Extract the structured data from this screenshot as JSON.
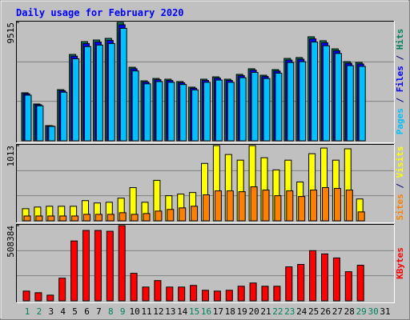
{
  "chart_data": [
    {
      "type": "bar",
      "title": "Daily usage for February 2020",
      "categories": [
        "1",
        "2",
        "3",
        "4",
        "5",
        "6",
        "7",
        "8",
        "9",
        "10",
        "11",
        "12",
        "13",
        "14",
        "15",
        "16",
        "17",
        "18",
        "19",
        "20",
        "21",
        "22",
        "23",
        "24",
        "25",
        "26",
        "27",
        "28",
        "29",
        "30",
        "31"
      ],
      "label_colors": [
        "#00805c",
        "#00805c",
        "#000000",
        "#000000",
        "#000000",
        "#000000",
        "#000000",
        "#00805c",
        "#00805c",
        "#000000",
        "#000000",
        "#000000",
        "#000000",
        "#000000",
        "#00805c",
        "#00805c",
        "#000000",
        "#000000",
        "#000000",
        "#000000",
        "#000000",
        "#00805c",
        "#00805c",
        "#000000",
        "#000000",
        "#000000",
        "#000000",
        "#000000",
        "#00805c",
        "#00805c",
        "#000000"
      ],
      "ylim": [
        0,
        9515
      ],
      "yticks": [
        9515
      ],
      "legend_separator": " / ",
      "series": [
        {
          "name": "Pages",
          "color": "#00c0ff",
          "values": [
            3667,
            2812,
            1159,
            3905,
            6593,
            7572,
            7695,
            7819,
            9039,
            5615,
            4579,
            4760,
            4703,
            4522,
            4095,
            4703,
            4883,
            4703,
            5073,
            5501,
            5007,
            5434,
            6289,
            6356,
            7942,
            7638,
            7021,
            6042,
            5985,
            null,
            null
          ]
        },
        {
          "name": "Files",
          "color": "#0000ff",
          "values": [
            3783,
            2901,
            1196,
            4028,
            6801,
            7811,
            7938,
            8065,
            9325,
            5792,
            4724,
            4910,
            4851,
            4665,
            4224,
            4851,
            5037,
            4851,
            5233,
            5674,
            5165,
            5606,
            6488,
            6556,
            8193,
            7879,
            7242,
            6233,
            6174,
            null,
            null
          ]
        },
        {
          "name": "Hits",
          "color": "#00805c",
          "values": [
            3860,
            2960,
            1220,
            4110,
            6940,
            7970,
            8100,
            8230,
            9515,
            5910,
            4820,
            5010,
            4950,
            4760,
            4310,
            4950,
            5140,
            4950,
            5340,
            5790,
            5270,
            5720,
            6620,
            6690,
            8360,
            8040,
            7390,
            6360,
            6300,
            null,
            null
          ]
        }
      ]
    },
    {
      "type": "bar",
      "ylim": [
        0,
        1013
      ],
      "yticks": [
        1013
      ],
      "legend_separator": " / ",
      "series": [
        {
          "name": "Sites",
          "color": "#ff8000",
          "values": [
            65,
            65,
            65,
            65,
            65,
            87,
            87,
            87,
            109,
            87,
            98,
            131,
            153,
            174,
            196,
            349,
            403,
            403,
            392,
            458,
            414,
            338,
            403,
            327,
            414,
            447,
            436,
            414,
            120,
            null,
            null
          ]
        },
        {
          "name": "Visits",
          "color": "#ffff00",
          "values": [
            163,
            185,
            196,
            196,
            196,
            272,
            240,
            250,
            305,
            447,
            250,
            545,
            338,
            360,
            381,
            773,
            1013,
            893,
            817,
            1013,
            850,
            686,
            817,
            523,
            904,
            980,
            817,
            970,
            294,
            null,
            null
          ]
        }
      ]
    },
    {
      "type": "bar",
      "ylim": [
        0,
        508384
      ],
      "yticks": [
        508384
      ],
      "series": [
        {
          "name": "KBytes",
          "color": "#ff0000",
          "values": [
            65600,
            54700,
            38300,
            153000,
            404600,
            475600,
            475600,
            470200,
            508384,
            185900,
            92900,
            136700,
            92900,
            92900,
            103900,
            71100,
            65600,
            71100,
            98400,
            120300,
            98400,
            98400,
            229600,
            246000,
            339000,
            317100,
            289800,
            196800,
            240500,
            null,
            null
          ]
        }
      ]
    }
  ]
}
